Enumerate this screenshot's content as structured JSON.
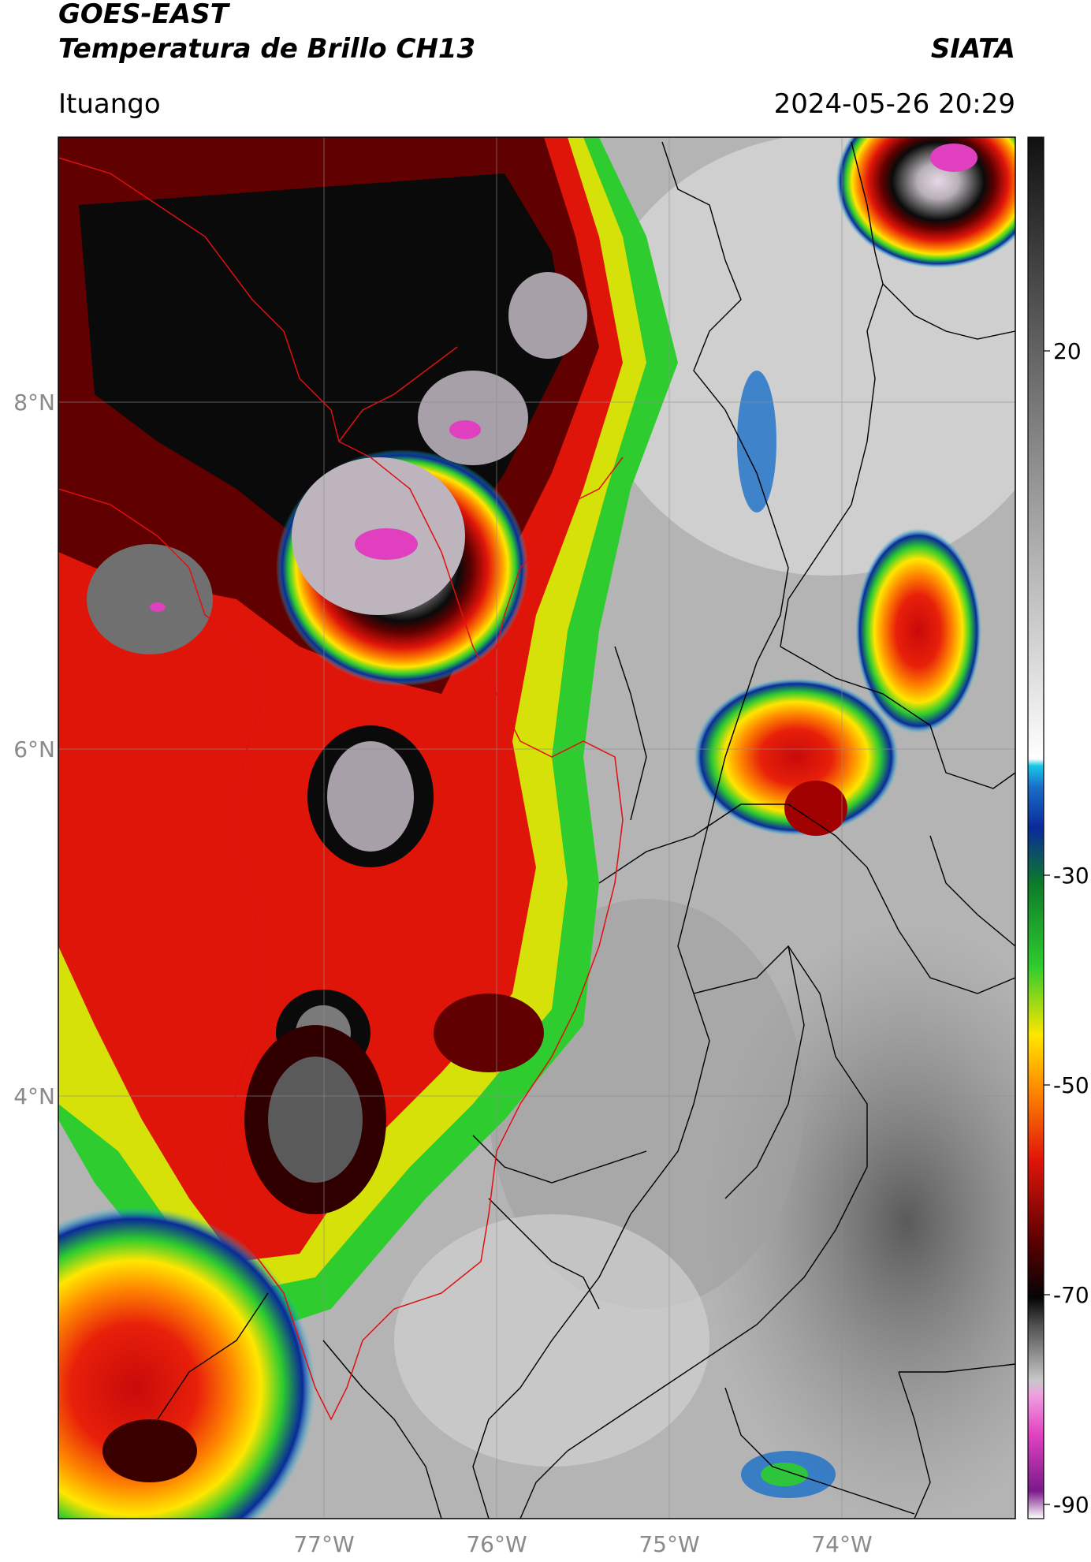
{
  "header": {
    "satellite": "GOES-EAST",
    "product": "Temperatura de Brillo CH13",
    "agency": "SIATA",
    "region": "Ituango",
    "datetime": "2024-05-26 20:29"
  },
  "map": {
    "lat_ticks": [
      "8°N",
      "6°N",
      "4°N"
    ],
    "lon_ticks": [
      "77°W",
      "76°W",
      "75°W",
      "74°W"
    ]
  },
  "colorbar": {
    "ticks": [
      "20",
      "-30",
      "-50",
      "-70",
      "-90"
    ],
    "colors": {
      "gray_scale": [
        "#ffffff",
        "#111111"
      ],
      "cyan": "#18c8e8",
      "blue": "#0a2a9a",
      "green": "#2ecc2e",
      "yellow": "#ffe600",
      "orange": "#ff8800",
      "red": "#e0150a",
      "dark_red": "#5a0000",
      "black": "#050505",
      "magenta": "#e040c0",
      "purple": "#7a1a8a"
    }
  }
}
